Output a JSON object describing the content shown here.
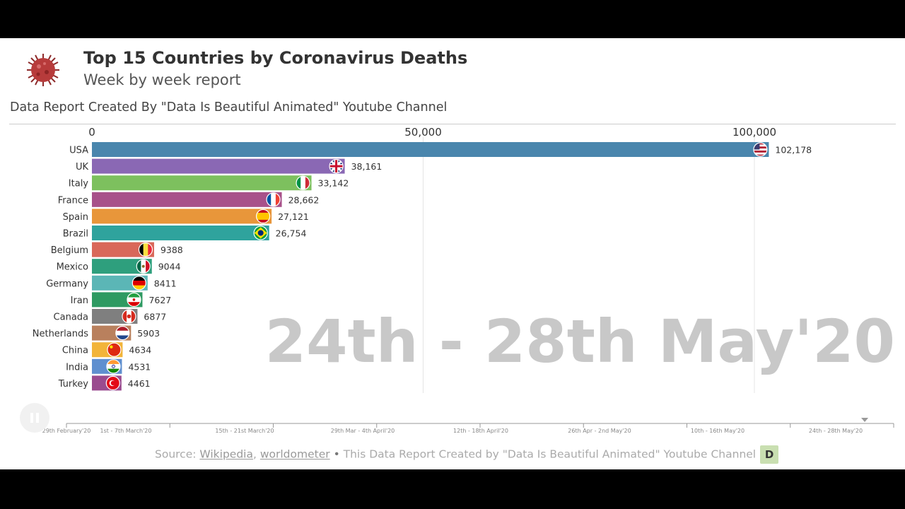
{
  "header": {
    "title": "Top 15 Countries by Coronavirus Deaths",
    "subtitle": "Week by week report",
    "credit": "Data Report Created By \"Data Is Beautiful Animated\" Youtube Channel",
    "logo_icon": "coronavirus-icon"
  },
  "current_period": "24th - 28th May'20",
  "chart_data": {
    "type": "bar",
    "orientation": "horizontal",
    "xlim": [
      0,
      120000
    ],
    "x_ticks": [
      0,
      50000,
      100000
    ],
    "x_tick_labels": [
      "0",
      "50,000",
      "100,000"
    ],
    "grid": true,
    "categories": [
      "USA",
      "UK",
      "Italy",
      "France",
      "Spain",
      "Brazil",
      "Belgium",
      "Mexico",
      "Germany",
      "Iran",
      "Canada",
      "Netherlands",
      "China",
      "India",
      "Turkey"
    ],
    "values": [
      102178,
      38161,
      33142,
      28662,
      27121,
      26754,
      9388,
      9044,
      8411,
      7627,
      6877,
      5903,
      4634,
      4531,
      4461
    ],
    "value_labels": [
      "102,178",
      "38,161",
      "33,142",
      "28,662",
      "27,121",
      "26,754",
      "9388",
      "9044",
      "8411",
      "7627",
      "6877",
      "5903",
      "4634",
      "4531",
      "4461"
    ],
    "colors": [
      "#4a86ad",
      "#8a68b4",
      "#7dc05e",
      "#a8518a",
      "#e8963a",
      "#2fa39d",
      "#d9685a",
      "#2e9f7d",
      "#5bb6b6",
      "#2e9a62",
      "#7f7f7f",
      "#b9805d",
      "#f2b43a",
      "#5f8fcf",
      "#9a4b8f"
    ],
    "flag_icons": [
      "flag-usa-icon",
      "flag-uk-icon",
      "flag-italy-icon",
      "flag-france-icon",
      "flag-spain-icon",
      "flag-brazil-icon",
      "flag-belgium-icon",
      "flag-mexico-icon",
      "flag-germany-icon",
      "flag-iran-icon",
      "flag-canada-icon",
      "flag-netherlands-icon",
      "flag-china-icon",
      "flag-india-icon",
      "flag-turkey-icon"
    ]
  },
  "timeline": {
    "labels": [
      "29th February'20",
      "1st - 7th March'20",
      "15th - 21st March'20",
      "29th Mar - 4th April'20",
      "12th - 18th April'20",
      "26th Apr - 2nd May'20",
      "10th - 16th May'20",
      "24th - 28th May'20"
    ],
    "progress": 1.0
  },
  "controls": {
    "pause_icon": "pause-icon"
  },
  "footer": {
    "source_prefix": "Source: ",
    "link1": "Wikipedia",
    "separator": ", ",
    "link2": "worldometer",
    "bullet": " • ",
    "text": "This Data Report Created by \"Data Is Beautiful Animated\" Youtube Channel",
    "badge": "D"
  }
}
